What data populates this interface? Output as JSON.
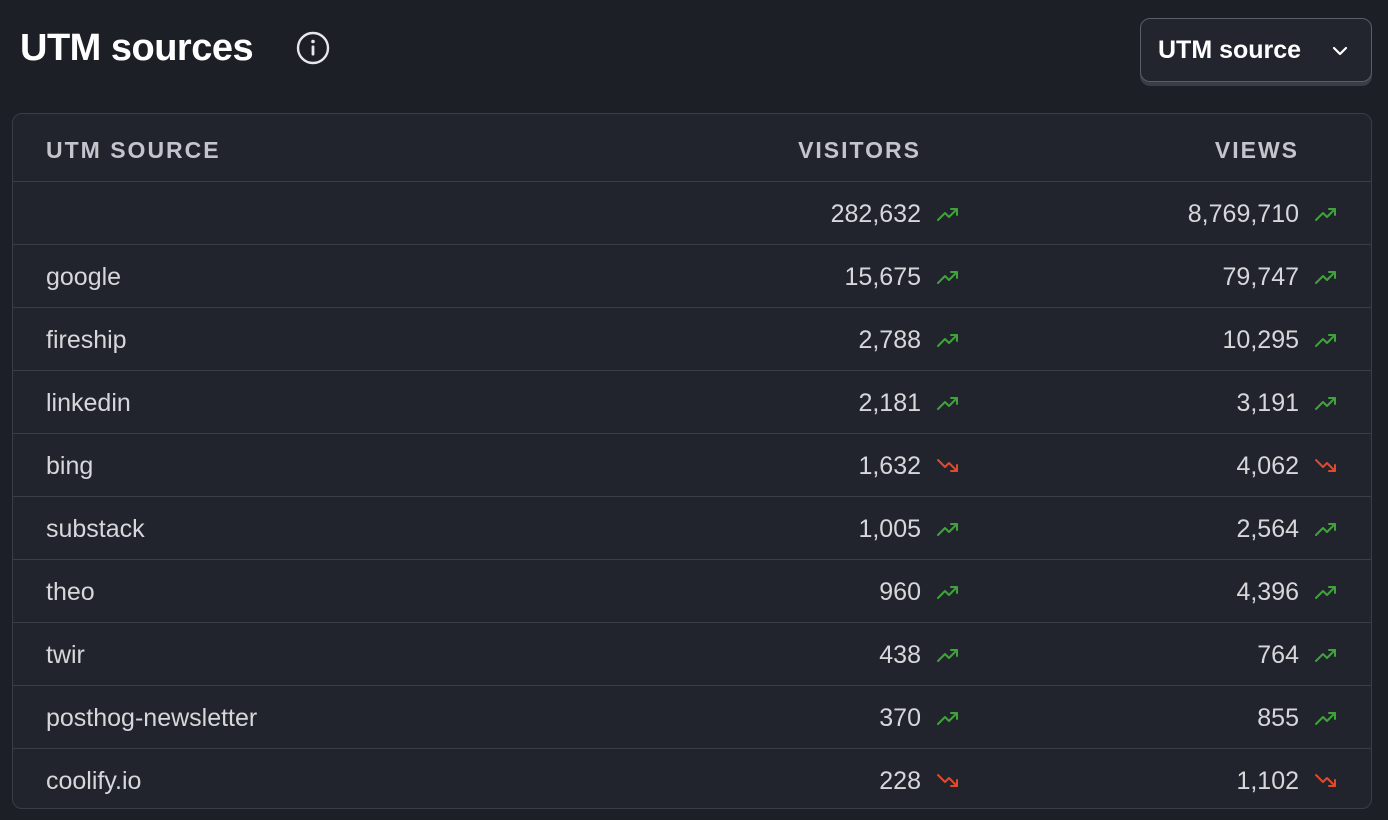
{
  "header": {
    "title": "UTM sources",
    "info_icon": "info-icon",
    "breakdown_select": {
      "value": "UTM source",
      "icon": "chevron-down-icon"
    }
  },
  "colors": {
    "trend_up": "#3fa33a",
    "trend_down": "#e0492b"
  },
  "table": {
    "columns": {
      "source": "UTM SOURCE",
      "visitors": "VISITORS",
      "views": "VIEWS"
    },
    "rows": [
      {
        "source": "",
        "visitors": "282,632",
        "visitors_trend": "up",
        "views": "8,769,710",
        "views_trend": "up"
      },
      {
        "source": "google",
        "visitors": "15,675",
        "visitors_trend": "up",
        "views": "79,747",
        "views_trend": "up"
      },
      {
        "source": "fireship",
        "visitors": "2,788",
        "visitors_trend": "up",
        "views": "10,295",
        "views_trend": "up"
      },
      {
        "source": "linkedin",
        "visitors": "2,181",
        "visitors_trend": "up",
        "views": "3,191",
        "views_trend": "up"
      },
      {
        "source": "bing",
        "visitors": "1,632",
        "visitors_trend": "down",
        "views": "4,062",
        "views_trend": "down"
      },
      {
        "source": "substack",
        "visitors": "1,005",
        "visitors_trend": "up",
        "views": "2,564",
        "views_trend": "up"
      },
      {
        "source": "theo",
        "visitors": "960",
        "visitors_trend": "up",
        "views": "4,396",
        "views_trend": "up"
      },
      {
        "source": "twir",
        "visitors": "438",
        "visitors_trend": "up",
        "views": "764",
        "views_trend": "up"
      },
      {
        "source": "posthog-newsletter",
        "visitors": "370",
        "visitors_trend": "up",
        "views": "855",
        "views_trend": "up"
      },
      {
        "source": "coolify.io",
        "visitors": "228",
        "visitors_trend": "down",
        "views": "1,102",
        "views_trend": "down"
      }
    ]
  }
}
